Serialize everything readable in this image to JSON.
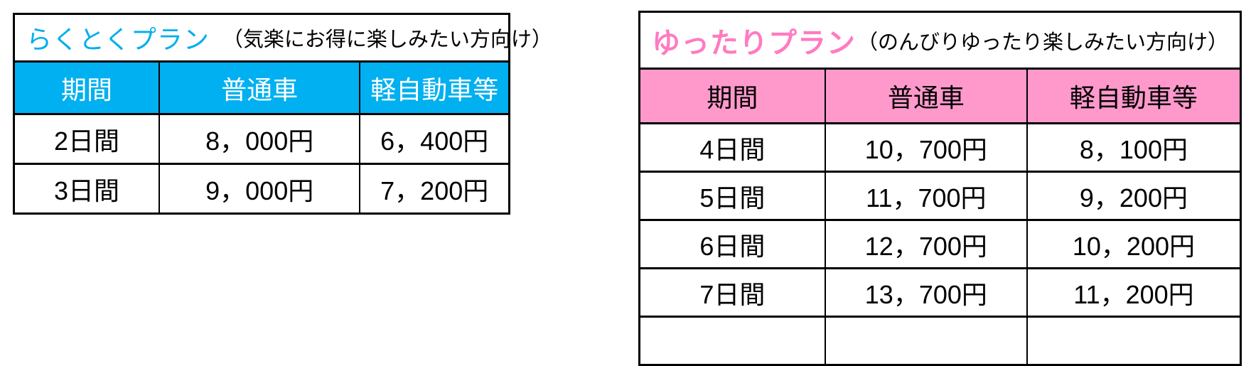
{
  "colors": {
    "background": "#FFFFFF",
    "border": "#000000",
    "rakutoku_accent": "#00AEEF",
    "rakutoku_header_bg": "#00B0F0",
    "rakutoku_header_text": "#FFFFFF",
    "yuttari_accent": "#FF7BC1",
    "yuttari_header_bg": "#FF99CC",
    "yuttari_header_text": "#000000"
  },
  "rakutoku": {
    "title": "らくとくプラン",
    "subtitle": "（気楽にお得に楽しみたい方向け）",
    "headers": [
      "期間",
      "普通車",
      "軽自動車等"
    ],
    "rows": [
      [
        "2日間",
        "8，000円",
        "6，400円"
      ],
      [
        "3日間",
        "9，000円",
        "7，200円"
      ]
    ]
  },
  "yuttari": {
    "title": "ゆったりプラン",
    "subtitle": "（のんびりゆったり楽しみたい方向け）",
    "headers": [
      "期間",
      "普通車",
      "軽自動車等"
    ],
    "rows": [
      [
        "4日間",
        "10，700円",
        "8，100円"
      ],
      [
        "5日間",
        "11，700円",
        "9，200円"
      ],
      [
        "6日間",
        "12，700円",
        "10，200円"
      ],
      [
        "7日間",
        "13，700円",
        "11，200円"
      ]
    ]
  }
}
